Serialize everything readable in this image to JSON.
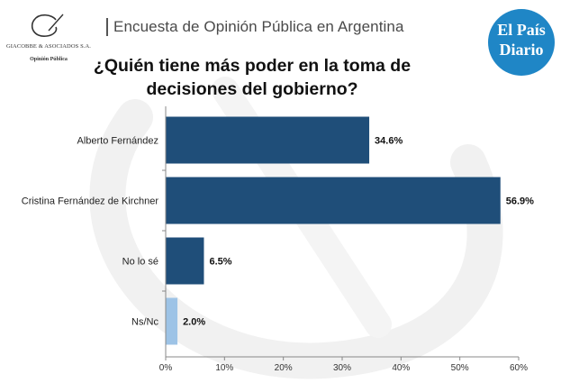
{
  "header": {
    "title": "Encuesta de Opinión Pública en Argentina"
  },
  "logo_left": {
    "company": "GIACOBBE & ASOCIADOS S.A.",
    "subtitle": "Opinión Pública"
  },
  "brand": {
    "line1": "El País",
    "line2": "Diario",
    "color": "#1f86c6"
  },
  "colors": {
    "dark_bar": "#1f4e79",
    "light_bar": "#9dc3e6",
    "axis": "#888888"
  },
  "chart_data": {
    "type": "bar",
    "orientation": "horizontal",
    "title": "¿Quién tiene más poder en la toma de decisiones del gobierno?",
    "title_lines": [
      "¿Quién tiene más poder en la toma de",
      "decisiones del gobierno?"
    ],
    "categories": [
      "Alberto Fernández",
      "Cristina Fernández de Kirchner",
      "No lo sé",
      "Ns/Nc"
    ],
    "values": [
      34.6,
      56.9,
      6.5,
      2.0
    ],
    "value_labels": [
      "34.6%",
      "56.9%",
      "6.5%",
      "2.0%"
    ],
    "xlim": [
      0,
      60
    ],
    "xticks": [
      "0%",
      "10%",
      "20%",
      "30%",
      "40%",
      "50%",
      "60%"
    ],
    "xlabel": "",
    "ylabel": "",
    "grid": false,
    "legend": "none"
  }
}
